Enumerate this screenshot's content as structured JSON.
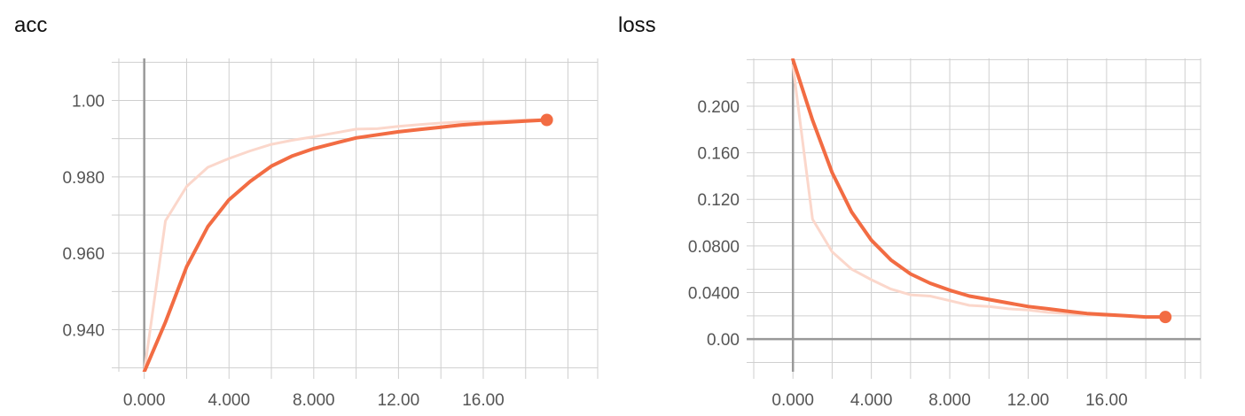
{
  "colors": {
    "series": "#f26c43",
    "series_raw": "#fbd7cb",
    "grid": "#cfcfcf",
    "axis": "#999999"
  },
  "chart_data": [
    {
      "id": "acc",
      "type": "line",
      "title": "acc",
      "xlabel": "",
      "ylabel": "",
      "xlim": [
        -1.2,
        21.4
      ],
      "ylim": [
        0.929,
        1.011
      ],
      "x_ticks": [
        0,
        4,
        8,
        12,
        16
      ],
      "x_tick_labels": [
        "0.000",
        "4.000",
        "8.000",
        "12.00",
        "16.00"
      ],
      "y_ticks": [
        0.94,
        0.96,
        0.98,
        1.0
      ],
      "y_tick_labels": [
        "0.940",
        "0.960",
        "0.980",
        "1.00"
      ],
      "grid": true,
      "series": [
        {
          "role": "raw",
          "x": [
            0,
            1,
            2,
            3,
            4,
            5,
            6,
            7,
            8,
            9,
            10,
            11,
            12,
            13,
            14,
            15,
            16,
            17,
            18,
            19
          ],
          "y": [
            0.929,
            0.9685,
            0.9775,
            0.9825,
            0.9848,
            0.9868,
            0.9885,
            0.9896,
            0.9905,
            0.9915,
            0.9925,
            0.9926,
            0.9932,
            0.9937,
            0.9941,
            0.9944,
            0.9945,
            0.9947,
            0.9949,
            0.995
          ]
        },
        {
          "role": "smoothed",
          "x": [
            0,
            1,
            2,
            3,
            4,
            5,
            6,
            7,
            8,
            9,
            10,
            11,
            12,
            13,
            14,
            15,
            16,
            17,
            18,
            19
          ],
          "y": [
            0.929,
            0.942,
            0.9565,
            0.967,
            0.974,
            0.9788,
            0.9828,
            0.9855,
            0.9874,
            0.9888,
            0.9902,
            0.991,
            0.9918,
            0.9924,
            0.993,
            0.9936,
            0.994,
            0.9943,
            0.9946,
            0.9949
          ]
        }
      ]
    },
    {
      "id": "loss",
      "type": "line",
      "title": "loss",
      "xlabel": "",
      "ylabel": "",
      "xlim": [
        -2.0,
        20.8
      ],
      "ylim": [
        -0.028,
        0.241
      ],
      "x_ticks": [
        0,
        4,
        8,
        12,
        16
      ],
      "x_tick_labels": [
        "0.000",
        "4.000",
        "8.000",
        "12.00",
        "16.00"
      ],
      "y_ticks": [
        0,
        0.04,
        0.08,
        0.12,
        0.16,
        0.2
      ],
      "y_tick_labels": [
        "0.00",
        "0.0400",
        "0.0800",
        "0.120",
        "0.160",
        "0.200"
      ],
      "grid": true,
      "series": [
        {
          "role": "raw",
          "x": [
            0,
            1,
            2,
            3,
            4,
            5,
            6,
            7,
            8,
            9,
            10,
            11,
            12,
            13,
            14,
            15,
            16,
            17,
            18,
            19
          ],
          "y": [
            0.235,
            0.103,
            0.075,
            0.06,
            0.051,
            0.043,
            0.038,
            0.037,
            0.033,
            0.029,
            0.028,
            0.026,
            0.025,
            0.023,
            0.022,
            0.021,
            0.02,
            0.02,
            0.019,
            0.019
          ]
        },
        {
          "role": "smoothed",
          "x": [
            0,
            1,
            2,
            3,
            4,
            5,
            6,
            7,
            8,
            9,
            10,
            11,
            12,
            13,
            14,
            15,
            16,
            17,
            18,
            19
          ],
          "y": [
            0.24,
            0.188,
            0.143,
            0.109,
            0.085,
            0.068,
            0.056,
            0.048,
            0.042,
            0.037,
            0.034,
            0.031,
            0.028,
            0.026,
            0.024,
            0.022,
            0.021,
            0.02,
            0.019,
            0.019
          ]
        }
      ]
    }
  ]
}
